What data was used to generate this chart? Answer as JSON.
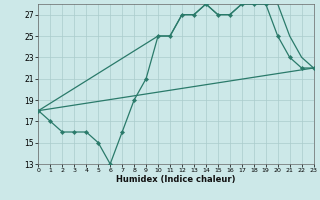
{
  "line1_x": [
    0,
    1,
    2,
    3,
    4,
    5,
    6,
    7,
    8,
    9,
    10,
    11,
    12,
    13,
    14,
    15,
    16,
    17,
    18,
    19,
    20,
    21,
    22,
    23
  ],
  "line1_y": [
    18,
    17,
    16,
    16,
    16,
    15,
    13,
    16,
    19,
    21,
    25,
    25,
    27,
    27,
    28,
    27,
    27,
    28,
    28,
    28,
    25,
    23,
    22,
    22
  ],
  "line2_x": [
    0,
    10,
    11,
    12,
    13,
    14,
    15,
    16,
    17,
    18,
    19,
    20,
    21,
    22,
    23
  ],
  "line2_y": [
    18,
    25,
    25,
    27,
    27,
    28,
    27,
    27,
    28,
    28,
    28,
    28,
    25,
    23,
    22
  ],
  "line3_x": [
    0,
    23
  ],
  "line3_y": [
    18,
    22
  ],
  "line_color": "#2a7a6a",
  "bg_color": "#cce8e8",
  "grid_color": "#aacccc",
  "xlabel": "Humidex (Indice chaleur)",
  "xlim": [
    0,
    23
  ],
  "ylim": [
    13,
    28
  ],
  "yticks": [
    13,
    15,
    17,
    19,
    21,
    23,
    25,
    27
  ],
  "xticks": [
    0,
    1,
    2,
    3,
    4,
    5,
    6,
    7,
    8,
    9,
    10,
    11,
    12,
    13,
    14,
    15,
    16,
    17,
    18,
    19,
    20,
    21,
    22,
    23
  ],
  "marker": "D",
  "marker_size": 2.2,
  "line_width": 0.9
}
